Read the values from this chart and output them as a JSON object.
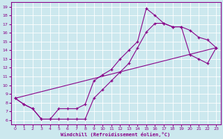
{
  "xlabel": "Windchill (Refroidissement éolien,°C)",
  "bg_color": "#cce8ee",
  "line_color": "#880088",
  "xlim": [
    -0.5,
    23.5
  ],
  "ylim": [
    5.5,
    19.5
  ],
  "xticks": [
    0,
    1,
    2,
    3,
    4,
    5,
    6,
    7,
    8,
    9,
    10,
    11,
    12,
    13,
    14,
    15,
    16,
    17,
    18,
    19,
    20,
    21,
    22,
    23
  ],
  "yticks": [
    6,
    7,
    8,
    9,
    10,
    11,
    12,
    13,
    14,
    15,
    16,
    17,
    18,
    19
  ],
  "line1_x": [
    0,
    1,
    2,
    3,
    4,
    5,
    6,
    7,
    8,
    9,
    10,
    11,
    12,
    13,
    14,
    15,
    16,
    17,
    18,
    19,
    20,
    21,
    22,
    23
  ],
  "line1_y": [
    8.5,
    7.8,
    7.3,
    6.1,
    6.1,
    7.3,
    7.3,
    7.3,
    7.8,
    10.5,
    11.2,
    11.8,
    13.0,
    14.0,
    15.0,
    18.8,
    18.0,
    17.1,
    16.7,
    16.7,
    16.3,
    15.5,
    15.2,
    14.3
  ],
  "line2_x": [
    0,
    23
  ],
  "line2_y": [
    8.5,
    14.3
  ],
  "line3_x": [
    0,
    1,
    2,
    3,
    4,
    5,
    6,
    7,
    8,
    9,
    10,
    11,
    12,
    13,
    14,
    15,
    16,
    17,
    18,
    19,
    20,
    21,
    22,
    23
  ],
  "line3_y": [
    8.5,
    7.8,
    7.3,
    6.1,
    6.1,
    6.1,
    6.1,
    6.1,
    6.1,
    8.5,
    9.5,
    10.5,
    11.5,
    12.5,
    14.3,
    16.1,
    17.1,
    17.1,
    16.7,
    16.7,
    13.5,
    13.0,
    12.5,
    14.3
  ],
  "grid_color": "#b0d8e0",
  "spine_color": "#880088"
}
